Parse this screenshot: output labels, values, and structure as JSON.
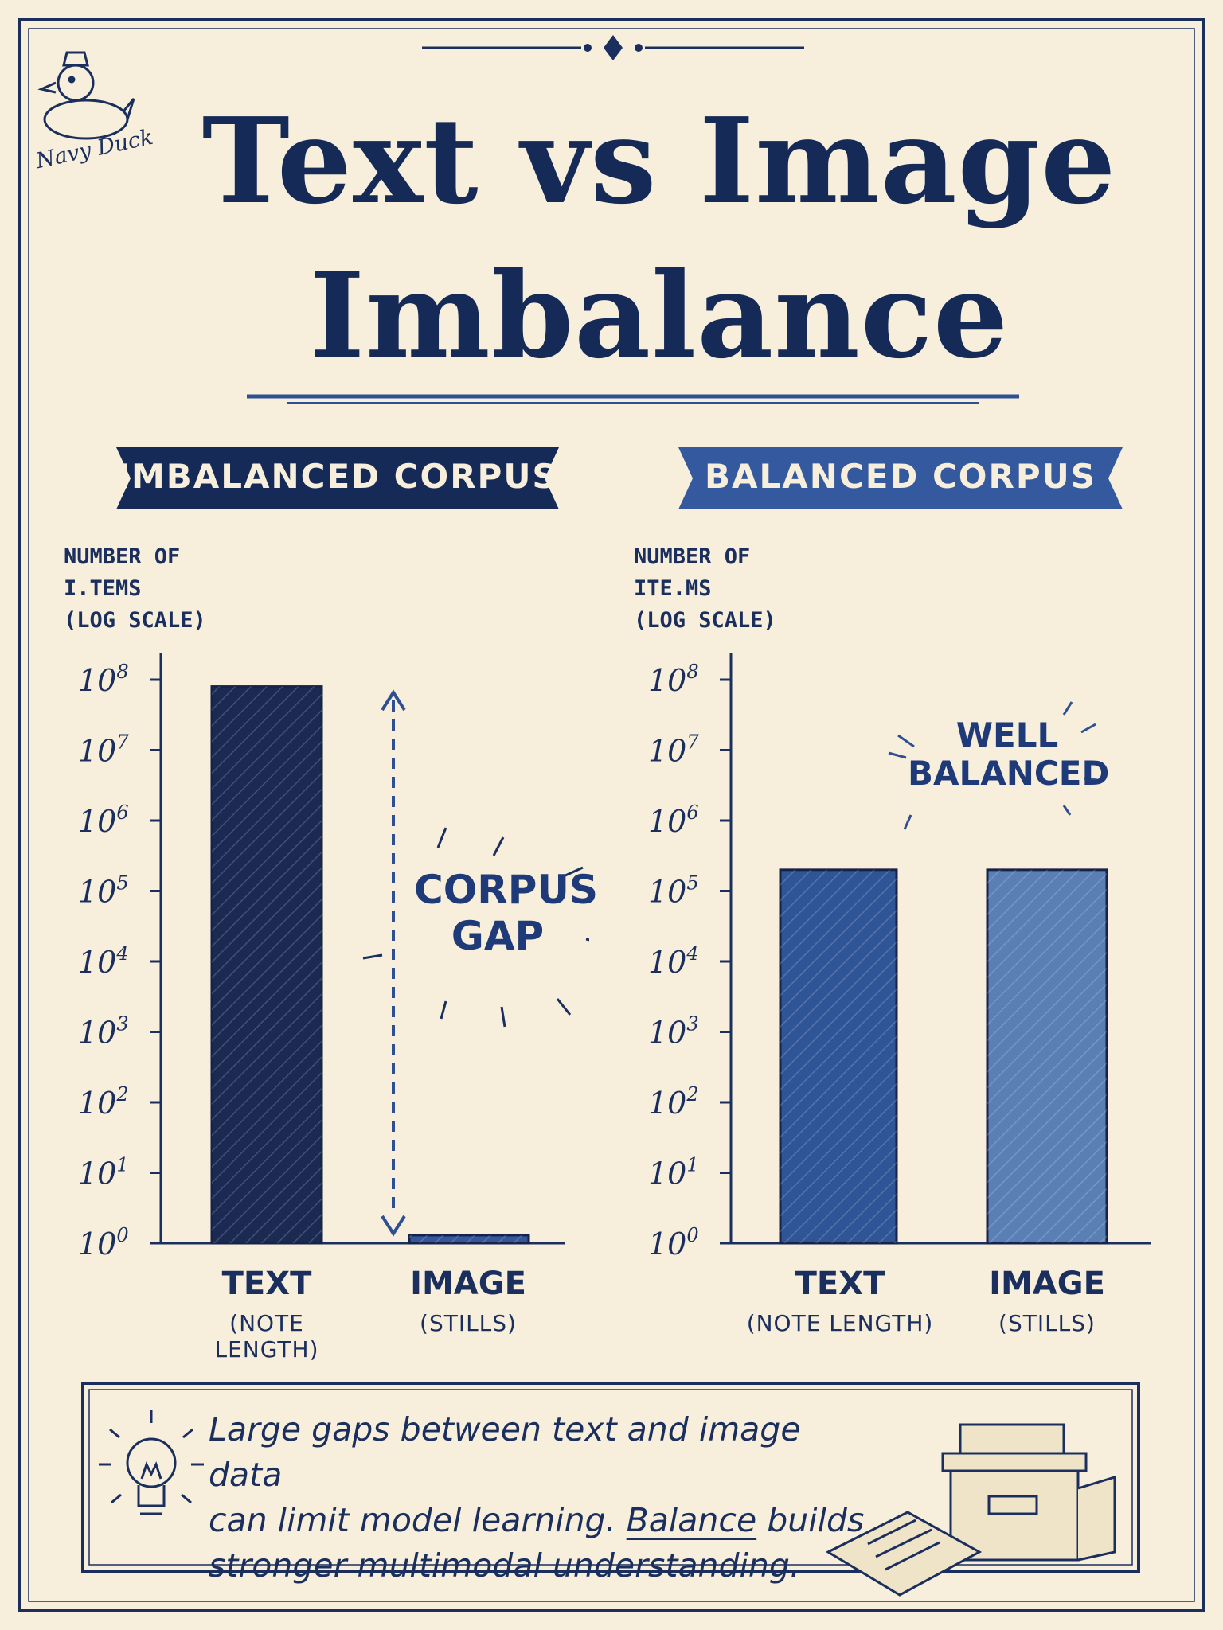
{
  "brand": {
    "name": "Navy Duck"
  },
  "title": {
    "line1": "Text vs Image",
    "line2": "Imbalance"
  },
  "note": {
    "line1": "Large gaps between text and image data",
    "line2_before": "can limit model learning.  ",
    "line2_emphasis": "Balance",
    "line2_after": " builds",
    "line3": "stronger multimodal understanding."
  },
  "chart_data": [
    {
      "type": "bar",
      "title": "IMBALANCED CORPUS",
      "ylabel_lines": [
        "NUMBER OF",
        "I.TEMS",
        "(LOG SCALE)"
      ],
      "yscale": "log",
      "ylim": [
        1,
        100000000
      ],
      "ytick_exponents": [
        "0",
        "1",
        "2",
        "3",
        "4",
        "5",
        "6",
        "7",
        "8"
      ],
      "categories": [
        {
          "label": "TEXT",
          "sublabel": "(NOTE LENGTH)"
        },
        {
          "label": "IMAGE",
          "sublabel": "(STILLS)"
        }
      ],
      "values": [
        80000000,
        1.3
      ],
      "bar_colors": [
        "#1b2a52",
        "#34569a"
      ],
      "annotation": {
        "lines": [
          "CORPUS",
          "GAP"
        ]
      }
    },
    {
      "type": "bar",
      "title": "BALANCED CORPUS",
      "ylabel_lines": [
        "NUMBER OF",
        "ITE.MS",
        "(LOG SCALE)"
      ],
      "yscale": "log",
      "ylim": [
        1,
        100000000
      ],
      "ytick_exponents": [
        "0",
        "1",
        "2",
        "3",
        "4",
        "5",
        "6",
        "7",
        "8"
      ],
      "categories": [
        {
          "label": "TEXT",
          "sublabel": "(NOTE LENGTH)"
        },
        {
          "label": "IMAGE",
          "sublabel": "(STILLS)"
        }
      ],
      "values": [
        200000,
        200000
      ],
      "bar_colors": [
        "#2f5597",
        "#5a7fb5"
      ],
      "annotation": {
        "lines": [
          "WELL",
          "BALANCED"
        ]
      }
    }
  ]
}
